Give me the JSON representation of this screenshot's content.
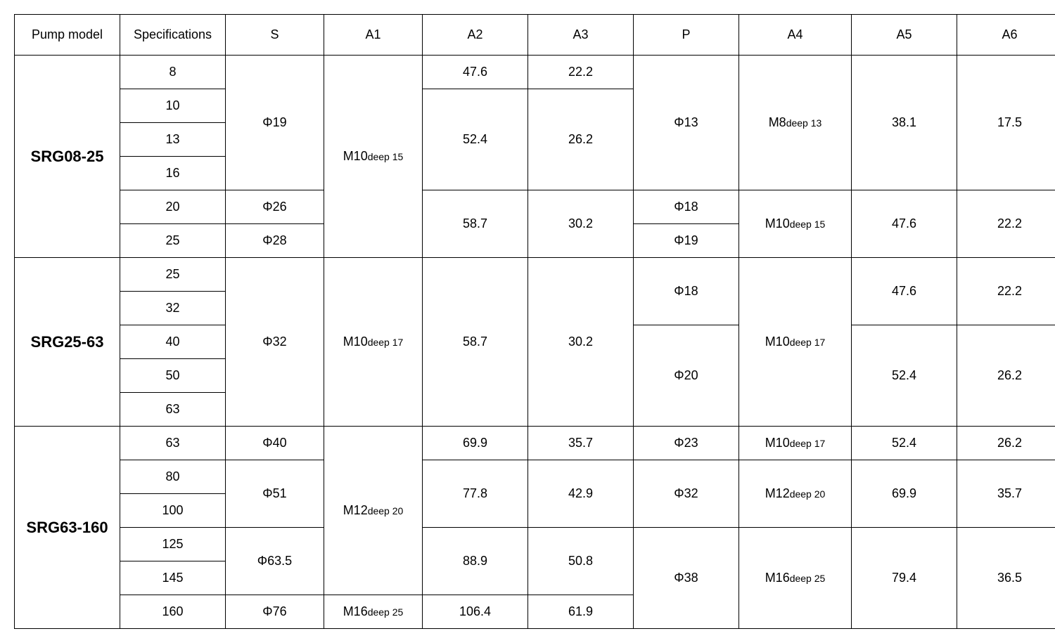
{
  "columns": [
    "Pump model",
    "Specifications",
    "S",
    "A1",
    "A2",
    "A3",
    "P",
    "A4",
    "A5",
    "A6"
  ],
  "models": {
    "srg08_25": "SRG08-25",
    "srg25_63": "SRG25-63",
    "srg63_160": "SRG63-160"
  },
  "specs": {
    "srg08_25": [
      "8",
      "10",
      "13",
      "16",
      "20",
      "25"
    ],
    "srg25_63": [
      "25",
      "32",
      "40",
      "50",
      "63"
    ],
    "srg63_160": [
      "63",
      "80",
      "100",
      "125",
      "145",
      "160"
    ]
  },
  "s": {
    "phi19": "Φ19",
    "phi26": "Φ26",
    "phi28": "Φ28",
    "phi32": "Φ32",
    "phi40": "Φ40",
    "phi51": "Φ51",
    "phi63_5": "Φ63.5",
    "phi76": "Φ76"
  },
  "a1": {
    "m10deep15_main": "M10",
    "m10deep15_sub": "deep 15",
    "m10deep17_main": "M10",
    "m10deep17_sub": "deep 17",
    "m12deep20_main": "M12",
    "m12deep20_sub": "deep 20",
    "m16deep25_main": "M16",
    "m16deep25_sub": "deep 25"
  },
  "a2": {
    "v47_6": "47.6",
    "v52_4": "52.4",
    "v58_7": "58.7",
    "v58_7b": "58.7",
    "v69_9": "69.9",
    "v77_8": "77.8",
    "v88_9": "88.9",
    "v106_4": "106.4"
  },
  "a3": {
    "v22_2": "22.2",
    "v26_2": "26.2",
    "v30_2": "30.2",
    "v30_2b": "30.2",
    "v35_7": "35.7",
    "v42_9": "42.9",
    "v50_8": "50.8",
    "v61_9": "61.9"
  },
  "p": {
    "phi13": "Φ13",
    "phi18a": "Φ18",
    "phi19": "Φ19",
    "phi18b": "Φ18",
    "phi20": "Φ20",
    "phi23": "Φ23",
    "phi32": "Φ32",
    "phi38": "Φ38"
  },
  "a4": {
    "m8deep13_main": "M8",
    "m8deep13_sub": "deep 13",
    "m10deep15_main": "M10",
    "m10deep15_sub": "deep 15",
    "m10deep17a_main": "M10",
    "m10deep17a_sub": "deep 17",
    "m10deep17b_main": "M10",
    "m10deep17b_sub": "deep 17",
    "m12deep20_main": "M12",
    "m12deep20_sub": "deep 20",
    "m16deep25_main": "M16",
    "m16deep25_sub": "deep 25"
  },
  "a5": {
    "v38_1": "38.1",
    "v47_6a": "47.6",
    "v47_6b": "47.6",
    "v52_4a": "52.4",
    "v52_4b": "52.4",
    "v69_9": "69.9",
    "v79_4": "79.4"
  },
  "a6": {
    "v17_5": "17.5",
    "v22_2a": "22.2",
    "v22_2b": "22.2",
    "v26_2a": "26.2",
    "v26_2b": "26.2",
    "v35_7": "35.7",
    "v36_5": "36.5"
  }
}
